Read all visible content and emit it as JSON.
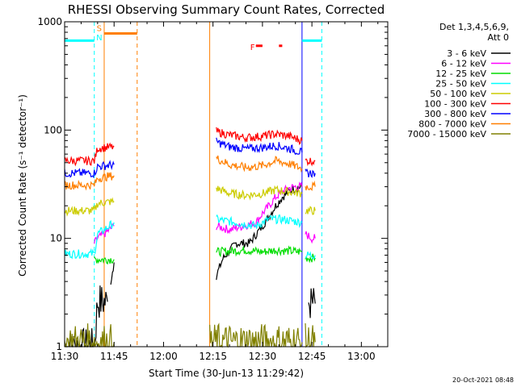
{
  "chart_data": {
    "type": "line",
    "title": "RHESSI Observing Summary Count Rates, Corrected",
    "xlabel": "Start Time (30-Jun-13 11:29:42)",
    "ylabel": "Corrected Count Rate (s⁻¹ detector⁻¹)",
    "yscale": "log",
    "ylim": [
      1,
      1000
    ],
    "xlim_minutes_after_1130": [
      0,
      98
    ],
    "x_ticks": [
      {
        "label": "11:30",
        "min": 0
      },
      {
        "label": "11:45",
        "min": 15
      },
      {
        "label": "12:00",
        "min": 30
      },
      {
        "label": "12:15",
        "min": 45
      },
      {
        "label": "12:30",
        "min": 60
      },
      {
        "label": "12:45",
        "min": 75
      },
      {
        "label": "13:00",
        "min": 90
      }
    ],
    "y_ticks": [
      {
        "label": "1",
        "value": 1
      },
      {
        "label": "10",
        "value": 10
      },
      {
        "label": "100",
        "value": 100
      },
      {
        "label": "1000",
        "value": 1000
      }
    ],
    "detector_info": [
      "Det 1,3,4,5,6,9,",
      "Att 0"
    ],
    "legend": [
      {
        "name": "3 - 6 keV",
        "color": "#000000"
      },
      {
        "name": "6 - 12 keV",
        "color": "#ff00ff"
      },
      {
        "name": "12 - 25 keV",
        "color": "#00dd00"
      },
      {
        "name": "25 - 50 keV",
        "color": "#00ffff"
      },
      {
        "name": "50 - 100 keV",
        "color": "#cccc00"
      },
      {
        "name": "100 - 300 keV",
        "color": "#ff0000"
      },
      {
        "name": "300 - 800 keV",
        "color": "#0000ff"
      },
      {
        "name": "800 - 7000 keV",
        "color": "#ff7f00"
      },
      {
        "name": "7000 - 15000 keV",
        "color": "#808000"
      }
    ],
    "gaps_minutes": [
      [
        22,
        44
      ],
      [
        72,
        84
      ]
    ],
    "series": [
      {
        "name": "3 - 6 keV",
        "segments": [
          {
            "x": [
              0,
              9,
              10,
              13
            ],
            "y": [
              1,
              1,
              2.6,
              2.6
            ]
          },
          {
            "x": [
              14,
              15
            ],
            "y": [
              4,
              6
            ]
          },
          {
            "x": [
              46,
              48,
              52,
              56,
              60,
              62,
              64,
              66,
              68,
              70,
              72
            ],
            "y": [
              4.5,
              6.5,
              9,
              9,
              13,
              16,
              20,
              24,
              27,
              29,
              30
            ]
          },
          {
            "x": [
              74,
              76
            ],
            "y": [
              2.5,
              2.5
            ]
          }
        ]
      },
      {
        "name": "6 - 12 keV",
        "segments": [
          {
            "x": [
              9,
              10,
              12,
              15
            ],
            "y": [
              9,
              10,
              11,
              13
            ]
          },
          {
            "x": [
              46,
              50,
              54,
              58,
              60,
              62,
              64,
              66,
              68,
              70,
              72
            ],
            "y": [
              13,
              12,
              13,
              14,
              17,
              20,
              24,
              27,
              29,
              30,
              30
            ]
          },
          {
            "x": [
              73,
              75,
              76
            ],
            "y": [
              11,
              10,
              10
            ]
          }
        ]
      },
      {
        "name": "12 - 25 keV",
        "segments": [
          {
            "x": [
              9,
              10,
              15
            ],
            "y": [
              6.4,
              6.4,
              6.4
            ]
          },
          {
            "x": [
              46,
              55,
              60,
              64,
              72
            ],
            "y": [
              7.5,
              7.8,
              7.5,
              7.8,
              7.5
            ]
          },
          {
            "x": [
              73,
              76
            ],
            "y": [
              6.6,
              6.6
            ]
          }
        ]
      },
      {
        "name": "25 - 50 keV",
        "segments": [
          {
            "x": [
              0,
              9,
              10,
              12,
              15
            ],
            "y": [
              7.2,
              7.2,
              11,
              12,
              14
            ]
          },
          {
            "x": [
              46,
              52,
              58,
              62,
              66,
              72
            ],
            "y": [
              15,
              14,
              13,
              15,
              15,
              14
            ]
          },
          {
            "x": [
              73,
              76
            ],
            "y": [
              7,
              7
            ]
          }
        ]
      },
      {
        "name": "50 - 100 keV",
        "segments": [
          {
            "x": [
              0,
              9,
              10,
              15
            ],
            "y": [
              18,
              18,
              21,
              22
            ]
          },
          {
            "x": [
              46,
              50,
              55,
              60,
              64,
              68,
              72
            ],
            "y": [
              29,
              26,
              25,
              26,
              28,
              27,
              26
            ]
          },
          {
            "x": [
              73,
              76
            ],
            "y": [
              18,
              18
            ]
          }
        ]
      },
      {
        "name": "100 - 300 keV",
        "segments": [
          {
            "x": [
              0,
              9,
              10,
              15
            ],
            "y": [
              52,
              52,
              68,
              70
            ]
          },
          {
            "x": [
              46,
              50,
              55,
              60,
              64,
              68,
              72
            ],
            "y": [
              97,
              90,
              85,
              88,
              92,
              88,
              80
            ]
          },
          {
            "x": [
              73,
              76
            ],
            "y": [
              52,
              52
            ]
          }
        ]
      },
      {
        "name": "300 - 800 keV",
        "segments": [
          {
            "x": [
              0,
              9,
              10,
              15
            ],
            "y": [
              40,
              40,
              46,
              48
            ]
          },
          {
            "x": [
              46,
              50,
              55,
              60,
              64,
              68,
              72
            ],
            "y": [
              78,
              70,
              67,
              69,
              72,
              68,
              62
            ]
          },
          {
            "x": [
              73,
              76
            ],
            "y": [
              40,
              40
            ]
          }
        ]
      },
      {
        "name": "800 - 7000 keV",
        "segments": [
          {
            "x": [
              0,
              9,
              10,
              15
            ],
            "y": [
              31,
              31,
              36,
              38
            ]
          },
          {
            "x": [
              46,
              50,
              55,
              60,
              64,
              68,
              72
            ],
            "y": [
              55,
              48,
              45,
              47,
              52,
              49,
              44
            ]
          },
          {
            "x": [
              73,
              76
            ],
            "y": [
              30,
              30
            ]
          }
        ]
      },
      {
        "name": "7000 - 15000 keV",
        "segments": [
          {
            "x": [
              0,
              10,
              15
            ],
            "y": [
              1.1,
              1.1,
              1.1
            ]
          },
          {
            "x": [
              44,
              72
            ],
            "y": [
              1.1,
              1.1
            ]
          },
          {
            "x": [
              73,
              76
            ],
            "y": [
              1.1,
              1.1
            ]
          }
        ]
      }
    ],
    "saa_night_flag_bars": [
      {
        "color": "#00ffff",
        "x_start": 0,
        "x_end": 9,
        "y": 670
      },
      {
        "color": "#ff7f00",
        "x_start": 12,
        "x_end": 22,
        "y": 780
      },
      {
        "color": "#00ffff",
        "x_start": 72,
        "x_end": 78,
        "y": 670
      }
    ],
    "vertical_markers": [
      {
        "x": 9,
        "color": "#00ffff",
        "style": "dashed"
      },
      {
        "x": 12,
        "color": "#ff7f00",
        "style": "solid"
      },
      {
        "x": 22,
        "color": "#ff7f00",
        "style": "dashed"
      },
      {
        "x": 44,
        "color": "#ff7f00",
        "style": "solid"
      },
      {
        "x": 72,
        "color": "#0000ff",
        "style": "solid"
      },
      {
        "x": 78,
        "color": "#00ffff",
        "style": "dashed"
      }
    ],
    "flag_labels": [
      {
        "text": "S",
        "color": "#ff7f00",
        "x": 10.5
      },
      {
        "text": "N",
        "color": "#00ffff",
        "x": 10.5
      },
      {
        "text": "F",
        "color": "#ff0000",
        "x": 57
      }
    ],
    "flare_marks": [
      {
        "x_start": 58,
        "x_end": 60,
        "color": "#ff0000"
      },
      {
        "x_start": 65,
        "x_end": 66,
        "color": "#ff0000"
      }
    ],
    "timestamp": "20-Oct-2021 08:48"
  }
}
